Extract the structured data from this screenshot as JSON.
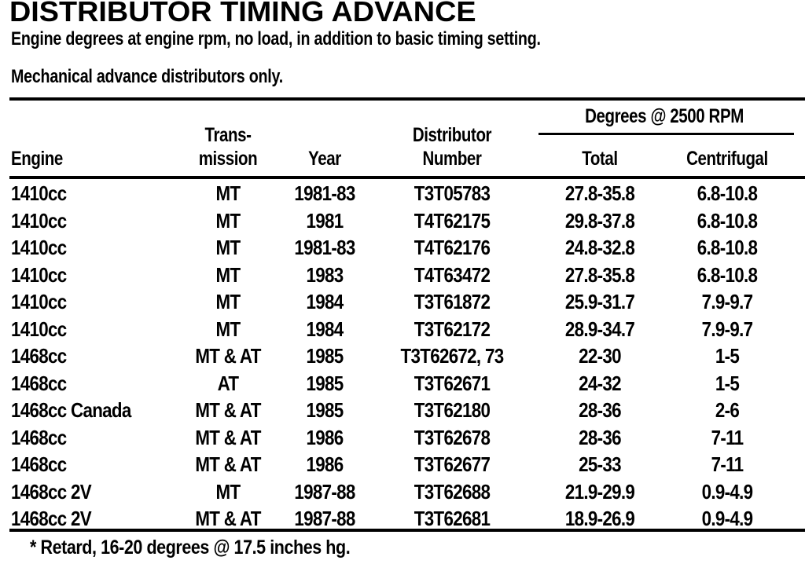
{
  "title": "DISTRIBUTOR TIMING ADVANCE",
  "subtitle1": "Engine degrees at engine rpm, no load, in addition to basic timing setting.",
  "subtitle2": "Mechanical advance distributors only.",
  "headers": {
    "engine": "Engine",
    "transmission_1": "Trans-",
    "transmission_2": "mission",
    "year": "Year",
    "distributor_1": "Distributor",
    "distributor_2": "Number",
    "group": "Degrees @ 2500 RPM",
    "total": "Total",
    "centrifugal": "Centrifugal"
  },
  "rows": [
    [
      "1410cc",
      "MT",
      "1981-83",
      "T3T05783",
      "27.8-35.8",
      "6.8-10.8"
    ],
    [
      "1410cc",
      "MT",
      "1981",
      "T4T62175",
      "29.8-37.8",
      "6.8-10.8"
    ],
    [
      "1410cc",
      "MT",
      "1981-83",
      "T4T62176",
      "24.8-32.8",
      "6.8-10.8"
    ],
    [
      "1410cc",
      "MT",
      "1983",
      "T4T63472",
      "27.8-35.8",
      "6.8-10.8"
    ],
    [
      "1410cc",
      "MT",
      "1984",
      "T3T61872",
      "25.9-31.7",
      "7.9-9.7"
    ],
    [
      "1410cc",
      "MT",
      "1984",
      "T3T62172",
      "28.9-34.7",
      "7.9-9.7"
    ],
    [
      "1468cc",
      "MT & AT",
      "1985",
      "T3T62672, 73",
      "22-30",
      "1-5"
    ],
    [
      "1468cc",
      "AT",
      "1985",
      "T3T62671",
      "24-32",
      "1-5"
    ],
    [
      "1468cc Canada",
      "MT & AT",
      "1985",
      "T3T62180",
      "28-36",
      "2-6"
    ],
    [
      "1468cc",
      "MT & AT",
      "1986",
      "T3T62678",
      "28-36",
      "7-11"
    ],
    [
      "1468cc",
      "MT & AT",
      "1986",
      "T3T62677",
      "25-33",
      "7-11"
    ],
    [
      "1468cc 2V",
      "MT",
      "1987-88",
      "T3T62688",
      "21.9-29.9",
      "0.9-4.9"
    ],
    [
      "1468cc 2V",
      "MT & AT",
      "1987-88",
      "T3T62681",
      "18.9-26.9",
      "0.9-4.9"
    ]
  ],
  "footnote": "* Retard, 16-20 degrees @ 17.5 inches hg."
}
